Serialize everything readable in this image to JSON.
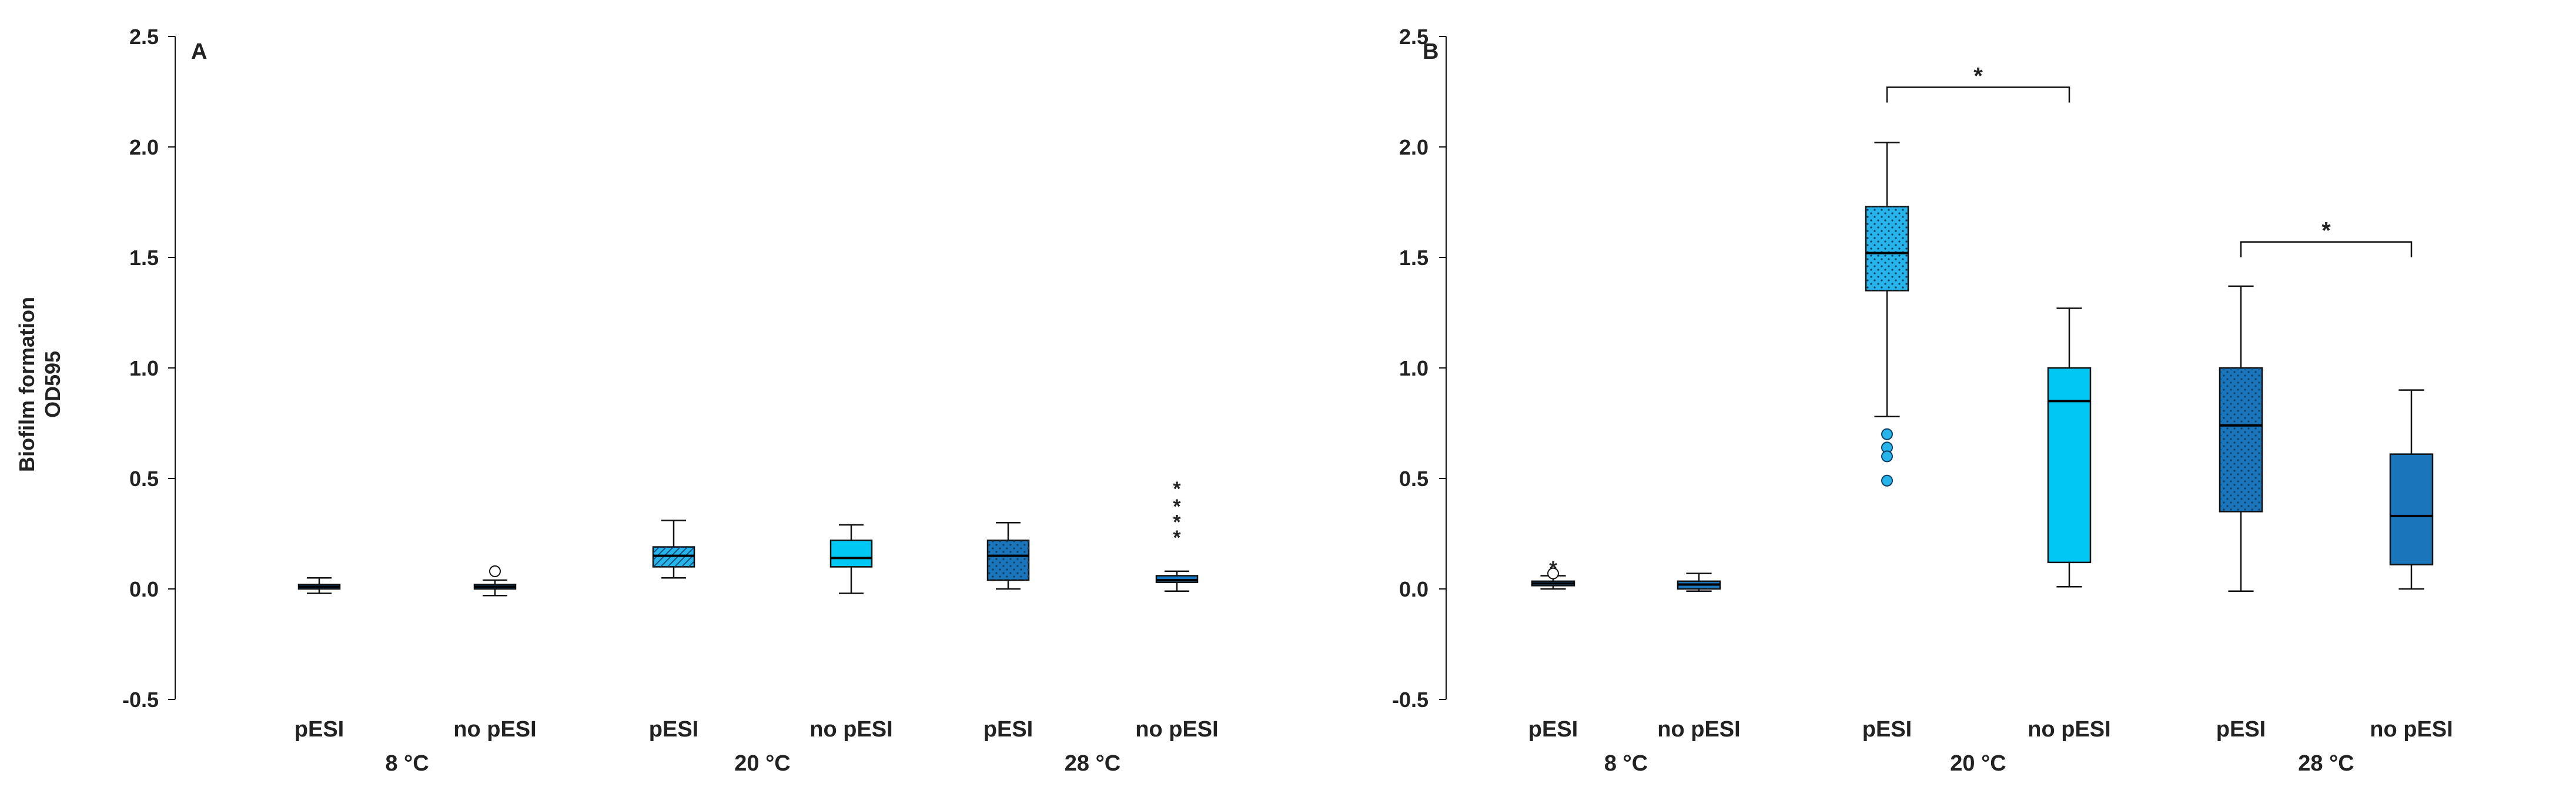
{
  "y_axis_title": [
    "Biofilm formation",
    "OD595"
  ],
  "colors": {
    "dark": "#1b75bb",
    "mid": "#27b4ea",
    "light": "#00c8f5",
    "outline": "#111111"
  },
  "chart_data": [
    {
      "panel": "A",
      "type": "box",
      "ylim": [
        -0.5,
        2.5
      ],
      "yticks": [
        "2.5",
        "2.0",
        "1.5",
        "1.0",
        "0.5",
        "0.0",
        "-0.5"
      ],
      "groups": [
        "8 °C",
        "20 °C",
        "28 °C"
      ],
      "categories": [
        "pESI",
        "no pESI",
        "pESI",
        "no pESI",
        "pESI",
        "no pESI"
      ],
      "boxes": [
        {
          "label": "pESI",
          "group": "8 °C",
          "min": -0.02,
          "q1": 0.0,
          "median": 0.01,
          "q3": 0.02,
          "max": 0.05,
          "outliers": [],
          "color": "#1b75bb",
          "pattern": "solid"
        },
        {
          "label": "no pESI",
          "group": "8 °C",
          "min": -0.03,
          "q1": 0.0,
          "median": 0.01,
          "q3": 0.02,
          "max": 0.04,
          "outliers": [
            {
              "value": 0.08,
              "symbol": "circle"
            }
          ],
          "color": "#1b75bb",
          "pattern": "solid"
        },
        {
          "label": "pESI",
          "group": "20 °C",
          "min": 0.05,
          "q1": 0.1,
          "median": 0.15,
          "q3": 0.19,
          "max": 0.31,
          "outliers": [],
          "color": "#27b4ea",
          "pattern": "hatch"
        },
        {
          "label": "no pESI",
          "group": "20 °C",
          "min": -0.02,
          "q1": 0.1,
          "median": 0.14,
          "q3": 0.22,
          "max": 0.29,
          "outliers": [],
          "color": "#00c8f5",
          "pattern": "solid"
        },
        {
          "label": "pESI",
          "group": "28 °C",
          "min": 0.0,
          "q1": 0.04,
          "median": 0.15,
          "q3": 0.22,
          "max": 0.3,
          "outliers": [],
          "color": "#1b75bb",
          "pattern": "dots"
        },
        {
          "label": "no pESI",
          "group": "28 °C",
          "min": -0.01,
          "q1": 0.03,
          "median": 0.04,
          "q3": 0.06,
          "max": 0.08,
          "outliers": [
            {
              "value": 0.24,
              "symbol": "star"
            },
            {
              "value": 0.31,
              "symbol": "star"
            },
            {
              "value": 0.38,
              "symbol": "star"
            },
            {
              "value": 0.46,
              "symbol": "star"
            }
          ],
          "color": "#1b75bb",
          "pattern": "solid"
        }
      ],
      "significance": []
    },
    {
      "panel": "B",
      "type": "box",
      "ylim": [
        -0.5,
        2.5
      ],
      "yticks": [
        "2.5",
        "2.0",
        "1.5",
        "1.0",
        "0.5",
        "0.0",
        "-0.5"
      ],
      "groups": [
        "8 °C",
        "20 °C",
        "28 °C"
      ],
      "categories": [
        "pESI",
        "no pESI",
        "pESI",
        "no pESI",
        "pESI",
        "no pESI"
      ],
      "boxes": [
        {
          "label": "pESI",
          "group": "8 °C",
          "min": 0.0,
          "q1": 0.015,
          "median": 0.025,
          "q3": 0.035,
          "max": 0.06,
          "outliers": [
            {
              "value": 0.07,
              "symbol": "circle"
            },
            {
              "value": 0.1,
              "symbol": "star"
            }
          ],
          "color": "#1b75bb",
          "pattern": "solid"
        },
        {
          "label": "no pESI",
          "group": "8 °C",
          "min": -0.01,
          "q1": 0.0,
          "median": 0.02,
          "q3": 0.035,
          "max": 0.07,
          "outliers": [],
          "color": "#1b75bb",
          "pattern": "solid"
        },
        {
          "label": "pESI",
          "group": "20 °C",
          "min": 0.78,
          "q1": 1.35,
          "median": 1.52,
          "q3": 1.73,
          "max": 2.02,
          "outliers": [
            {
              "value": 0.7,
              "symbol": "dot"
            },
            {
              "value": 0.64,
              "symbol": "dot"
            },
            {
              "value": 0.6,
              "symbol": "dot"
            },
            {
              "value": 0.49,
              "symbol": "dot"
            }
          ],
          "color": "#27b4ea",
          "pattern": "dots"
        },
        {
          "label": "no pESI",
          "group": "20 °C",
          "min": 0.01,
          "q1": 0.12,
          "median": 0.85,
          "q3": 1.0,
          "max": 1.27,
          "outliers": [],
          "color": "#00c8f5",
          "pattern": "solid"
        },
        {
          "label": "pESI",
          "group": "28 °C",
          "min": -0.01,
          "q1": 0.35,
          "median": 0.74,
          "q3": 1.0,
          "max": 1.37,
          "outliers": [],
          "color": "#1b75bb",
          "pattern": "dots"
        },
        {
          "label": "no pESI",
          "group": "28 °C",
          "min": 0.0,
          "q1": 0.11,
          "median": 0.33,
          "q3": 0.61,
          "max": 0.9,
          "outliers": [],
          "color": "#1b75bb",
          "pattern": "solid"
        }
      ],
      "significance": [
        {
          "from": 2,
          "to": 3,
          "value": 2.27,
          "label": "*"
        },
        {
          "from": 4,
          "to": 5,
          "value": 1.57,
          "label": "*"
        }
      ]
    }
  ]
}
